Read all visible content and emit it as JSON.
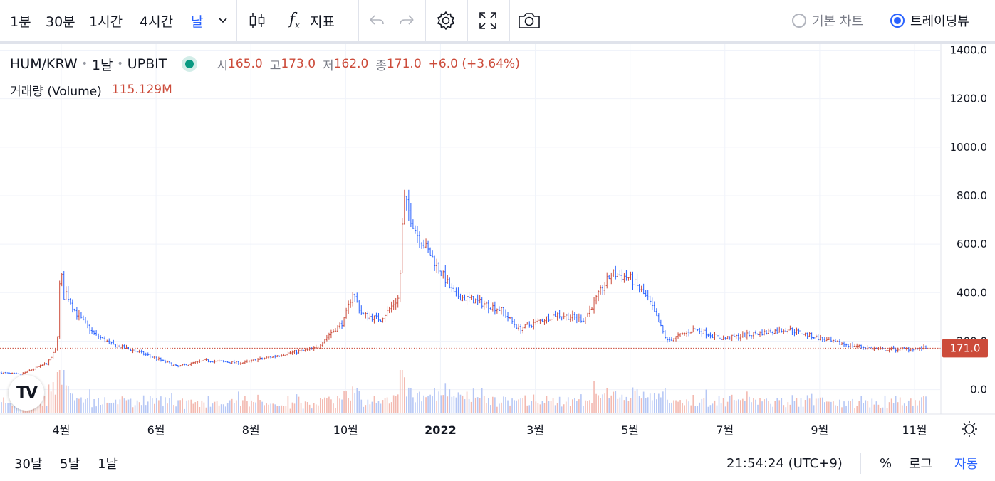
{
  "toolbar": {
    "intervals": [
      "1분",
      "30분",
      "1시간",
      "4시간",
      "날"
    ],
    "active_interval": "날",
    "indicators_label": "지표",
    "radio_basic": "기본 차트",
    "radio_tv": "트레이딩뷰"
  },
  "legend": {
    "symbol": "HUM/KRW",
    "interval": "1날",
    "exchange": "UPBIT",
    "open_label": "시",
    "open": "165.0",
    "high_label": "고",
    "high": "173.0",
    "low_label": "저",
    "low": "162.0",
    "close_label": "종",
    "close": "171.0",
    "change": "+6.0 (+3.64%)",
    "volume_label": "거래량 (Volume)",
    "volume": "115.129M"
  },
  "bottom": {
    "ranges": [
      "30날",
      "5날",
      "1날"
    ],
    "clock": "21:54:24 (UTC+9)",
    "percent": "%",
    "log": "로그",
    "auto": "자동"
  },
  "colors": {
    "up": "#cc4b3a",
    "down": "#2962ff",
    "grid": "#f0f3fa",
    "last_price_bg": "#cc4b3a"
  },
  "chart_data": {
    "type": "bar",
    "title": "HUM/KRW",
    "y_ticks": [
      "1400.0",
      "1200.0",
      "1000.0",
      "800.0",
      "600.0",
      "400.0",
      "200.0",
      "0.0"
    ],
    "ylim": [
      -95,
      1425
    ],
    "x_ticks": [
      "4월",
      "6월",
      "8월",
      "10월",
      "2022",
      "3월",
      "5월",
      "7월",
      "9월",
      "11월"
    ],
    "last_price": "171.0",
    "price_series": [
      {
        "t": 0,
        "v": 70
      },
      {
        "t": 0.02,
        "v": 62
      },
      {
        "t": 0.05,
        "v": 110
      },
      {
        "t": 0.06,
        "v": 175
      },
      {
        "t": 0.064,
        "v": 520
      },
      {
        "t": 0.067,
        "v": 380
      },
      {
        "t": 0.07,
        "v": 400
      },
      {
        "t": 0.08,
        "v": 320
      },
      {
        "t": 0.1,
        "v": 230
      },
      {
        "t": 0.12,
        "v": 185
      },
      {
        "t": 0.14,
        "v": 165
      },
      {
        "t": 0.16,
        "v": 140
      },
      {
        "t": 0.19,
        "v": 95
      },
      {
        "t": 0.22,
        "v": 120
      },
      {
        "t": 0.26,
        "v": 110
      },
      {
        "t": 0.31,
        "v": 150
      },
      {
        "t": 0.34,
        "v": 170
      },
      {
        "t": 0.355,
        "v": 230
      },
      {
        "t": 0.37,
        "v": 280
      },
      {
        "t": 0.38,
        "v": 400
      },
      {
        "t": 0.39,
        "v": 310
      },
      {
        "t": 0.41,
        "v": 290
      },
      {
        "t": 0.43,
        "v": 380
      },
      {
        "t": 0.435,
        "v": 790
      },
      {
        "t": 0.45,
        "v": 640
      },
      {
        "t": 0.47,
        "v": 520
      },
      {
        "t": 0.49,
        "v": 390
      },
      {
        "t": 0.51,
        "v": 370
      },
      {
        "t": 0.54,
        "v": 330
      },
      {
        "t": 0.56,
        "v": 250
      },
      {
        "t": 0.6,
        "v": 310
      },
      {
        "t": 0.63,
        "v": 290
      },
      {
        "t": 0.66,
        "v": 480
      },
      {
        "t": 0.68,
        "v": 460
      },
      {
        "t": 0.7,
        "v": 370
      },
      {
        "t": 0.72,
        "v": 200
      },
      {
        "t": 0.75,
        "v": 250
      },
      {
        "t": 0.78,
        "v": 210
      },
      {
        "t": 0.85,
        "v": 250
      },
      {
        "t": 0.9,
        "v": 195
      },
      {
        "t": 0.95,
        "v": 165
      },
      {
        "t": 1.0,
        "v": 171
      }
    ]
  }
}
